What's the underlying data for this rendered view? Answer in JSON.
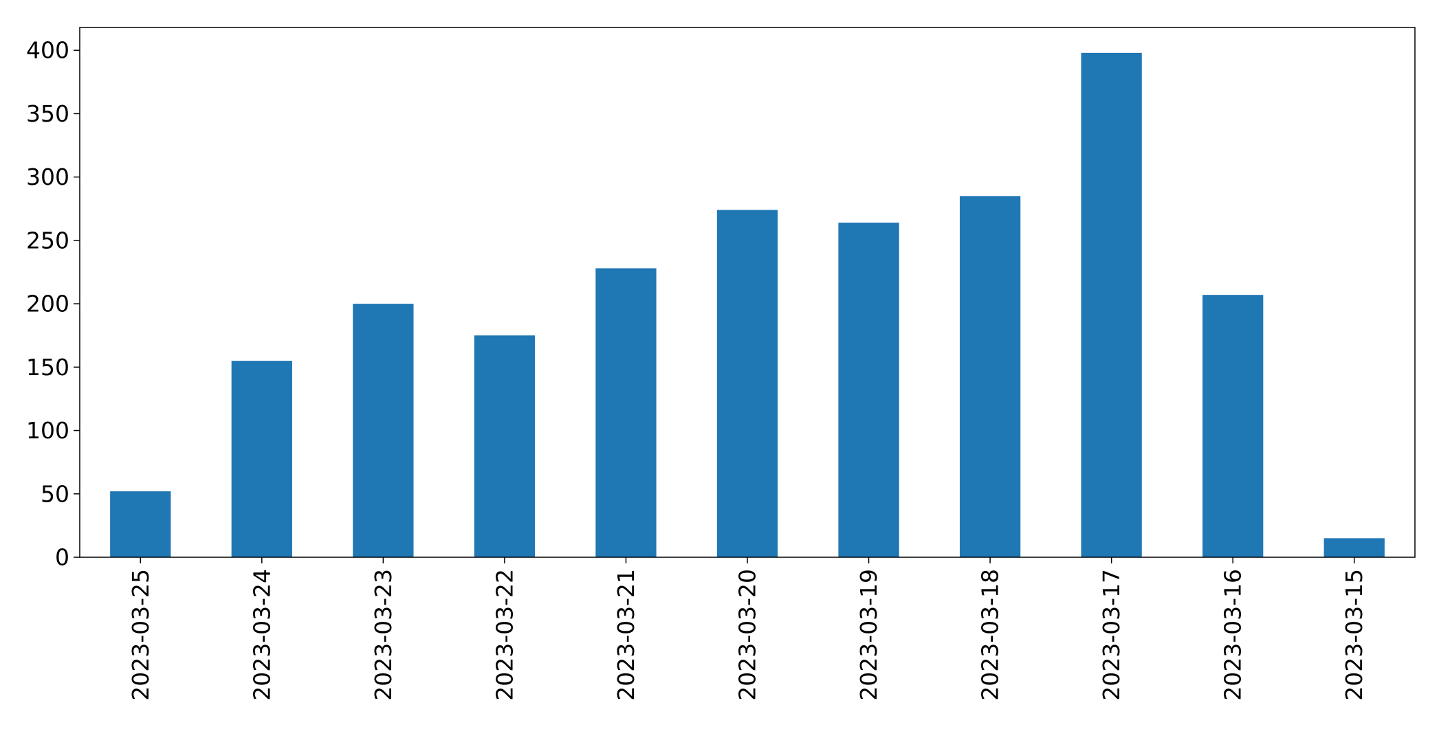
{
  "chart_data": {
    "type": "bar",
    "categories": [
      "2023-03-25",
      "2023-03-24",
      "2023-03-23",
      "2023-03-22",
      "2023-03-21",
      "2023-03-20",
      "2023-03-19",
      "2023-03-18",
      "2023-03-17",
      "2023-03-16",
      "2023-03-15"
    ],
    "values": [
      52,
      155,
      200,
      175,
      228,
      274,
      264,
      285,
      398,
      207,
      15
    ],
    "title": "",
    "xlabel": "",
    "ylabel": "",
    "ylim": [
      0,
      418
    ],
    "yticks": [
      0,
      50,
      100,
      150,
      200,
      250,
      300,
      350,
      400
    ],
    "grid": false,
    "legend": "none",
    "bar_color": "#1f77b4"
  }
}
